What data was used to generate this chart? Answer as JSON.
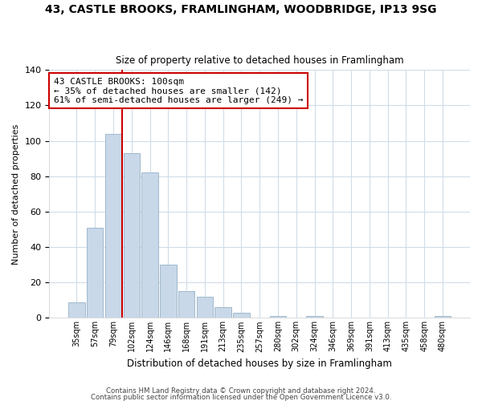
{
  "title1": "43, CASTLE BROOKS, FRAMLINGHAM, WOODBRIDGE, IP13 9SG",
  "title2": "Size of property relative to detached houses in Framlingham",
  "xlabel": "Distribution of detached houses by size in Framlingham",
  "ylabel": "Number of detached properties",
  "bin_labels": [
    "35sqm",
    "57sqm",
    "79sqm",
    "102sqm",
    "124sqm",
    "146sqm",
    "168sqm",
    "191sqm",
    "213sqm",
    "235sqm",
    "257sqm",
    "280sqm",
    "302sqm",
    "324sqm",
    "346sqm",
    "369sqm",
    "391sqm",
    "413sqm",
    "435sqm",
    "458sqm",
    "480sqm"
  ],
  "bar_heights": [
    9,
    51,
    104,
    93,
    82,
    30,
    15,
    12,
    6,
    3,
    0,
    1,
    0,
    1,
    0,
    0,
    0,
    0,
    0,
    0,
    1
  ],
  "bar_color": "#c8d8e8",
  "bar_edgecolor": "#a0b8cc",
  "vline_color": "#cc0000",
  "annotation_text": "43 CASTLE BROOKS: 100sqm\n← 35% of detached houses are smaller (142)\n61% of semi-detached houses are larger (249) →",
  "annotation_box_color": "#ffffff",
  "annotation_box_edgecolor": "#cc0000",
  "ylim": [
    0,
    140
  ],
  "yticks": [
    0,
    20,
    40,
    60,
    80,
    100,
    120,
    140
  ],
  "footer1": "Contains HM Land Registry data © Crown copyright and database right 2024.",
  "footer2": "Contains public sector information licensed under the Open Government Licence v3.0.",
  "background_color": "#ffffff",
  "grid_color": "#d0dce8"
}
